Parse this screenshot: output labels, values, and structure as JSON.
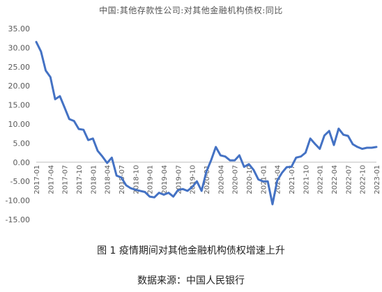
{
  "chart_data": {
    "type": "line",
    "title": "中国:其他存款性公司:对其他金融机构债权:同比",
    "xlabel": "",
    "ylabel": "",
    "ylim": [
      -15,
      35
    ],
    "yticks": [
      "35.00",
      "30.00",
      "25.00",
      "20.00",
      "15.00",
      "10.00",
      "5.00",
      "0.00",
      "-5.00",
      "-10.00",
      "-15.00"
    ],
    "xtick_labels": [
      "2017-01",
      "2017-04",
      "2017-07",
      "2017-10",
      "2018-01",
      "2018-04",
      "2018-07",
      "2018-10",
      "2019-01",
      "2019-04",
      "2019-07",
      "2019-10",
      "2020-01",
      "2020-04",
      "2020-07",
      "2020-10",
      "2021-01",
      "2021-04",
      "2021-07",
      "2021-10",
      "2022-01",
      "2022-04",
      "2022-07",
      "2022-10",
      "2023-01"
    ],
    "grid": false,
    "legend": "none",
    "color": "#4472C4",
    "series": [
      {
        "x": [
          "2017-01",
          "2017-02",
          "2017-03",
          "2017-04",
          "2017-05",
          "2017-06",
          "2017-07",
          "2017-08",
          "2017-09",
          "2017-10",
          "2017-11",
          "2017-12",
          "2018-01",
          "2018-02",
          "2018-03",
          "2018-04",
          "2018-05",
          "2018-06",
          "2018-07",
          "2018-08",
          "2018-09",
          "2018-10",
          "2018-11",
          "2018-12",
          "2019-01",
          "2019-02",
          "2019-03",
          "2019-04",
          "2019-05",
          "2019-06",
          "2019-07",
          "2019-08",
          "2019-09",
          "2019-10",
          "2019-11",
          "2019-12",
          "2020-01",
          "2020-02",
          "2020-03",
          "2020-04",
          "2020-05",
          "2020-06",
          "2020-07",
          "2020-08",
          "2020-09",
          "2020-10",
          "2020-11",
          "2020-12",
          "2021-01",
          "2021-02",
          "2021-03",
          "2021-04",
          "2021-05",
          "2021-06",
          "2021-07",
          "2021-08",
          "2021-09",
          "2021-10",
          "2021-11",
          "2021-12",
          "2022-01",
          "2022-02",
          "2022-03",
          "2022-04",
          "2022-05",
          "2022-06",
          "2022-07",
          "2022-08",
          "2022-09",
          "2022-10",
          "2022-11",
          "2022-12",
          "2023-01"
        ],
        "values": [
          31.5,
          29.0,
          24.0,
          22.3,
          16.5,
          17.3,
          14.3,
          11.3,
          10.8,
          8.7,
          8.5,
          5.8,
          6.2,
          3.0,
          1.5,
          -0.2,
          1.2,
          -3.5,
          -4.0,
          -6.0,
          -6.8,
          -7.2,
          -7.5,
          -7.8,
          -9.0,
          -9.2,
          -8.0,
          -8.5,
          -8.0,
          -9.0,
          -7.3,
          -7.0,
          -7.5,
          -6.5,
          -5.0,
          -7.5,
          -2.5,
          0.5,
          4.0,
          1.8,
          1.5,
          0.5,
          0.5,
          1.8,
          -1.2,
          -0.5,
          -2.0,
          -4.5,
          -5.0,
          -5.0,
          -11.0,
          -4.8,
          -2.8,
          -1.3,
          -1.2,
          1.2,
          1.5,
          2.5,
          6.2,
          4.8,
          3.5,
          7.0,
          8.2,
          4.5,
          8.8,
          7.2,
          6.9,
          4.7,
          4.0,
          3.5,
          3.8,
          3.8,
          4.0
        ]
      }
    ]
  },
  "caption": "图 1  疫情期间对其他金融机构债权增速上升",
  "source": "数据来源：中国人民银行"
}
